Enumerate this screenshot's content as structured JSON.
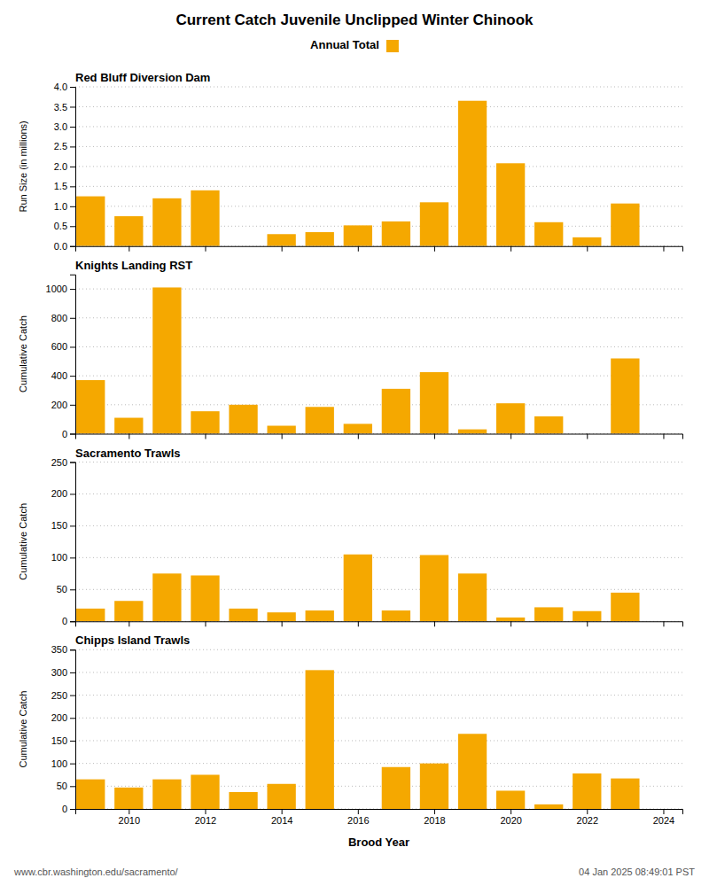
{
  "title": "Current Catch Juvenile Unclipped Winter Chinook",
  "annotations": [
    "www.cbr.washington.edu/sacramento/",
    "04 Jan 2025 08:49:01 PST"
  ],
  "chart_data": [
    {
      "type": "bar",
      "title": "Red Bluff Diversion Dam",
      "ylabel": "Run Size (in millions)",
      "x": [
        2009,
        2010,
        2011,
        2012,
        2013,
        2014,
        2015,
        2016,
        2017,
        2018,
        2019,
        2020,
        2021,
        2022,
        2023
      ],
      "series": [
        {
          "name": "Annual Total",
          "color": "#F5A800",
          "values": [
            1.25,
            0.75,
            1.2,
            1.4,
            0.0,
            0.3,
            0.35,
            0.52,
            0.62,
            1.1,
            3.65,
            2.08,
            0.6,
            0.22,
            1.07
          ]
        }
      ],
      "xlim": [
        2008.6,
        2024.5
      ],
      "xticks": [
        2010,
        2012,
        2014,
        2016,
        2018,
        2020,
        2022,
        2024
      ],
      "ylim": [
        0,
        4.0
      ],
      "yticks": [
        {
          "value": 0,
          "label": "0.0"
        },
        0.5,
        {
          "value": 1.0,
          "label": "1.0"
        },
        1.5,
        {
          "value": 2.0,
          "label": "2.0"
        },
        2.5,
        {
          "value": 3.0,
          "label": "3.0"
        },
        3.5,
        {
          "value": 4.0,
          "label": "4.0"
        }
      ],
      "grid": true,
      "tick_labels": "y"
    },
    {
      "type": "bar",
      "title": "Knights Landing RST",
      "ylabel": "Cumulative Catch",
      "x": [
        2009,
        2010,
        2011,
        2012,
        2013,
        2014,
        2015,
        2016,
        2017,
        2018,
        2019,
        2020,
        2021,
        2022,
        2023
      ],
      "series": [
        {
          "name": "Annual Total",
          "color": "#F5A800",
          "values": [
            370,
            110,
            1010,
            155,
            200,
            55,
            185,
            68,
            310,
            425,
            30,
            210,
            120,
            0,
            520
          ]
        }
      ],
      "xlim": [
        2008.6,
        2024.5
      ],
      "xticks": [
        2010,
        2012,
        2014,
        2016,
        2018,
        2020,
        2022,
        2024
      ],
      "ylim": [
        0,
        1100
      ],
      "yticks": [
        0,
        200,
        400,
        600,
        800,
        1000
      ],
      "grid": true,
      "tick_labels": "y"
    },
    {
      "type": "bar",
      "title": "Sacramento Trawls",
      "ylabel": "Cumulative Catch",
      "x": [
        2009,
        2010,
        2011,
        2012,
        2013,
        2014,
        2015,
        2016,
        2017,
        2018,
        2019,
        2020,
        2021,
        2022,
        2023
      ],
      "series": [
        {
          "name": "Annual Total",
          "color": "#F5A800",
          "values": [
            20,
            32,
            75,
            72,
            20,
            14,
            17,
            105,
            17,
            104,
            75,
            6,
            22,
            16,
            45
          ]
        }
      ],
      "xlim": [
        2008.6,
        2024.5
      ],
      "xticks": [
        2010,
        2012,
        2014,
        2016,
        2018,
        2020,
        2022,
        2024
      ],
      "ylim": [
        0,
        250
      ],
      "yticks": [
        0,
        50,
        100,
        150,
        200,
        250
      ],
      "grid": true,
      "tick_labels": "y"
    },
    {
      "type": "bar",
      "title": "Chipps Island Trawls",
      "ylabel": "Cumulative Catch",
      "xlabel": "Brood Year",
      "x": [
        2009,
        2010,
        2011,
        2012,
        2013,
        2014,
        2015,
        2016,
        2017,
        2018,
        2019,
        2020,
        2021,
        2022,
        2023
      ],
      "series": [
        {
          "name": "Annual Total",
          "color": "#F5A800",
          "values": [
            65,
            47,
            65,
            75,
            37,
            55,
            305,
            0,
            92,
            100,
            165,
            40,
            10,
            78,
            67
          ]
        }
      ],
      "xlim": [
        2008.6,
        2024.5
      ],
      "xticks": [
        2010,
        2012,
        2014,
        2016,
        2018,
        2020,
        2022,
        2024
      ],
      "ylim": [
        0,
        350
      ],
      "yticks": [
        0,
        50,
        100,
        150,
        200,
        250,
        300,
        350
      ],
      "grid": true
    }
  ]
}
